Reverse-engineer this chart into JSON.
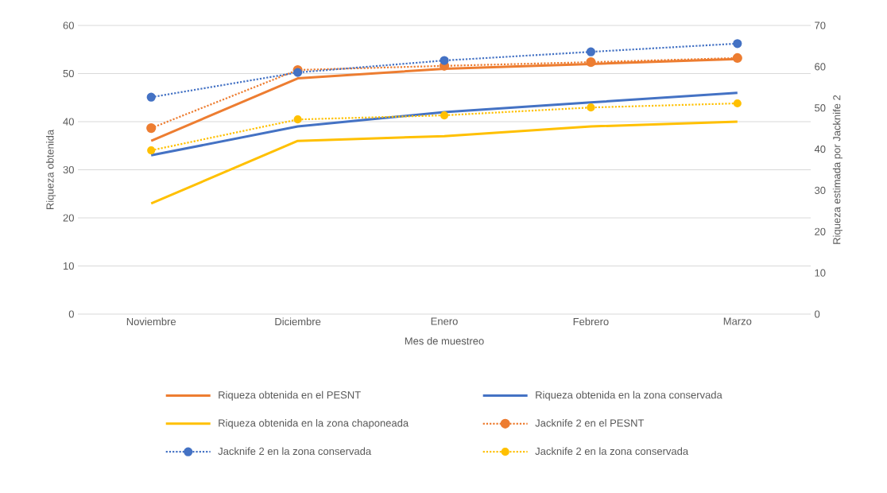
{
  "chart_data": {
    "type": "line",
    "categories": [
      "Noviembre",
      "Diciembre",
      "Enero",
      "Febrero",
      "Marzo"
    ],
    "xlabel": "Mes de muestreo",
    "ylabel": "Riqueza obtenida",
    "y2label": "Riqueza estimada por Jacknife 2",
    "ylim": [
      0,
      60
    ],
    "yticks": [
      0,
      10,
      20,
      30,
      40,
      50,
      60
    ],
    "y2lim": [
      0,
      70
    ],
    "y2ticks": [
      0,
      10,
      20,
      30,
      40,
      50,
      60,
      70
    ],
    "grid": "y",
    "legend": "bottom",
    "series": [
      {
        "name": "Riqueza obtenida en el PESNT",
        "color": "#ed7d31",
        "values": [
          36,
          49,
          51,
          52,
          53
        ],
        "marker": "none",
        "line_style": "solid"
      },
      {
        "name": "Riqueza obtenida en la zona conservada",
        "color": "#4472c4",
        "values": [
          33,
          39,
          42,
          44,
          46
        ],
        "marker": "none",
        "line_style": "solid"
      },
      {
        "name": "Riqueza obtenida en la zona chaponeada",
        "color": "#ffc000",
        "values": [
          23,
          36,
          37,
          39,
          40
        ],
        "marker": "none",
        "line_style": "solid"
      },
      {
        "name": "Jacknife 2 en el PESNT",
        "color": "#ed7d31",
        "values": [
          45.1,
          59.2,
          60.2,
          61.1,
          62.1
        ],
        "axis": "y2",
        "marker": "circle",
        "line_style": "dotted"
      },
      {
        "name": "Jacknife 2 en la zona conservada",
        "color": "#4472c4",
        "values": [
          52.6,
          58.6,
          61.5,
          63.6,
          65.6
        ],
        "axis": "y2",
        "marker": "circle",
        "line_style": "dotted"
      },
      {
        "name": "Jacknife 2 en la zona conservada",
        "color": "#ffc000",
        "values": [
          39.7,
          47.2,
          48.2,
          50.1,
          51.1
        ],
        "axis": "y2",
        "marker": "circle",
        "line_style": "dotted"
      }
    ]
  }
}
